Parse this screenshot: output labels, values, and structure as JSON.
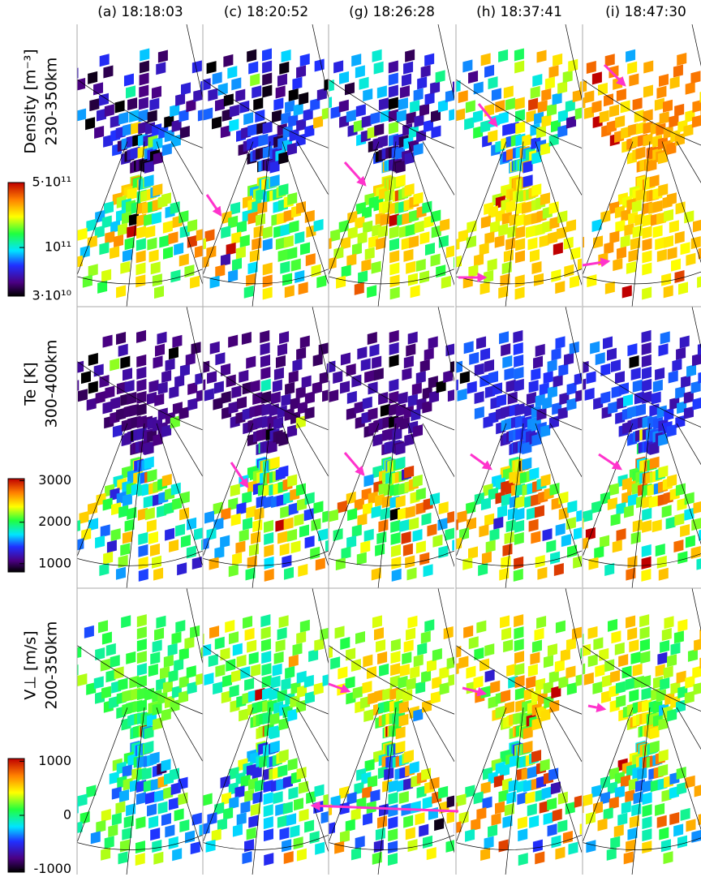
{
  "columns": [
    "(a) 18:18:03",
    "(c) 18:20:52",
    "(g) 18:26:28",
    "(h) 18:37:41",
    "(i) 18:47:30"
  ],
  "rows": [
    {
      "title": "Density [m⁻³]",
      "altitude": "230-350km",
      "colorbar": {
        "lim": [
          30000000000,
          500000000000
        ],
        "scale": "log",
        "ticks": [
          {
            "value": 500000000000,
            "label": "5·10¹¹"
          },
          {
            "value": 100000000000,
            "label": "10¹¹"
          },
          {
            "value": 30000000000,
            "label": "3·10¹⁰"
          }
        ]
      }
    },
    {
      "title": "Te [K]",
      "altitude": "300-400km",
      "colorbar": {
        "lim": [
          800,
          3050
        ],
        "scale": "linear",
        "ticks": [
          3000,
          2000,
          1000
        ]
      }
    },
    {
      "title": "V⊥ [m/s]",
      "altitude": "200-350km",
      "colorbar": {
        "lim": [
          -1050,
          1050
        ],
        "scale": "linear",
        "ticks": [
          1000,
          0,
          -1000
        ]
      }
    }
  ]
}
